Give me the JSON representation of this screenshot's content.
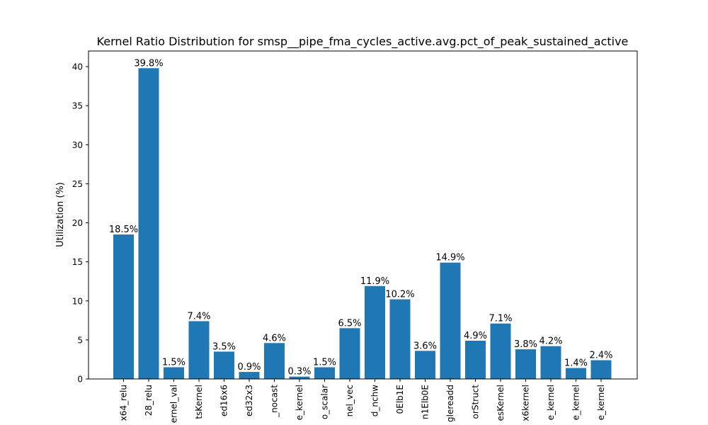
{
  "chart_data": {
    "type": "bar",
    "title": "Kernel Ratio Distribution for smsp__pipe_fma_cycles_active.avg.pct_of_peak_sustained_active",
    "xlabel": "",
    "ylabel": "Utilization (%)",
    "ylim": [
      0,
      42
    ],
    "yticks": [
      0,
      5,
      10,
      15,
      20,
      25,
      30,
      35,
      40
    ],
    "grid": false,
    "bar_color": "#1f77b4",
    "categories": [
      "x64_relu",
      "28_relu",
      "ernel_val",
      "tsKernel",
      "ed16x6",
      "ed32x3",
      "_nocast",
      "e_kernel",
      "o_scalar",
      "nel_vec",
      "d_nchw",
      "0Elb1E",
      "n1Elb0E",
      "glereadd",
      "orStruct",
      "esKernel",
      "x6kernel",
      "e_kernel",
      "e_kernel",
      "e_kernel"
    ],
    "values": [
      18.5,
      39.8,
      1.5,
      7.4,
      3.5,
      0.9,
      4.6,
      0.3,
      1.5,
      6.5,
      11.9,
      10.2,
      3.6,
      14.9,
      4.9,
      7.1,
      3.8,
      4.2,
      1.4,
      2.4
    ],
    "data_labels": [
      "18.5%",
      "39.8%",
      "1.5%",
      "7.4%",
      "3.5%",
      "0.9%",
      "4.6%",
      "0.3%",
      "1.5%",
      "6.5%",
      "11.9%",
      "10.2%",
      "3.6%",
      "14.9%",
      "4.9%",
      "7.1%",
      "3.8%",
      "4.2%",
      "1.4%",
      "2.4%"
    ]
  }
}
